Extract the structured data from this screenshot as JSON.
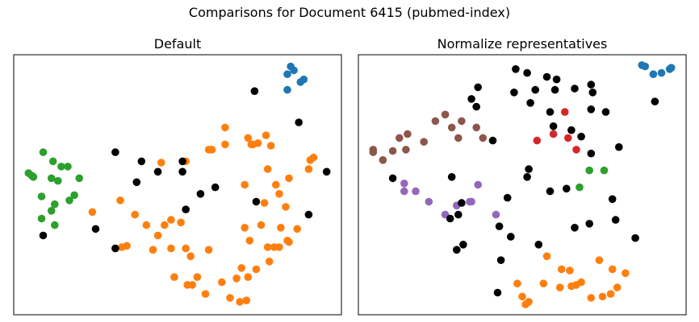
{
  "figure": {
    "title": "Comparisons for Document 6415 (pubmed-index)"
  },
  "colors": {
    "blue": "#1f77b4",
    "orange": "#ff7f0e",
    "green": "#2ca02c",
    "red": "#d62728",
    "purple": "#9467bd",
    "brown": "#8c564b",
    "black": "#000000"
  },
  "chart_data": [
    {
      "type": "scatter",
      "title": "Default",
      "xlabel": "",
      "ylabel": "",
      "axes_ticks": false,
      "xlim": [
        0,
        100
      ],
      "ylim": [
        0,
        100
      ],
      "series": [
        {
          "color": "blue",
          "points": [
            [
              84.5,
              95.5
            ],
            [
              85.5,
              94.0
            ],
            [
              83.5,
              92.5
            ],
            [
              87.5,
              89.5
            ],
            [
              88.5,
              90.5
            ],
            [
              83.5,
              86.5
            ]
          ]
        },
        {
          "color": "green",
          "points": [
            [
              9.0,
              62.5
            ],
            [
              12.0,
              59.0
            ],
            [
              14.5,
              57.0
            ],
            [
              16.5,
              57.0
            ],
            [
              4.5,
              54.5
            ],
            [
              6.0,
              53.0
            ],
            [
              5.5,
              53.5
            ],
            [
              11.5,
              52.5
            ],
            [
              13.5,
              51.5
            ],
            [
              20.0,
              52.5
            ],
            [
              18.5,
              46.0
            ],
            [
              8.5,
              45.5
            ],
            [
              17.0,
              44.0
            ],
            [
              12.5,
              42.5
            ],
            [
              11.5,
              40.0
            ],
            [
              8.5,
              37.0
            ],
            [
              12.5,
              34.5
            ]
          ]
        },
        {
          "color": "orange",
          "points": [
            [
              64.5,
              72.0
            ],
            [
              71.5,
              68.0
            ],
            [
              77.0,
              69.0
            ],
            [
              64.5,
              65.5
            ],
            [
              72.5,
              65.5
            ],
            [
              74.5,
              66.0
            ],
            [
              73.0,
              65.5
            ],
            [
              78.5,
              65.0
            ],
            [
              59.5,
              63.5
            ],
            [
              60.5,
              63.5
            ],
            [
              91.5,
              60.5
            ],
            [
              90.5,
              59.5
            ],
            [
              52.5,
              59.0
            ],
            [
              45.0,
              58.5
            ],
            [
              77.5,
              56.0
            ],
            [
              90.0,
              56.0
            ],
            [
              84.0,
              52.5
            ],
            [
              80.0,
              50.0
            ],
            [
              70.5,
              50.0
            ],
            [
              32.5,
              44.0
            ],
            [
              81.0,
              46.5
            ],
            [
              76.5,
              43.0
            ],
            [
              83.0,
              41.5
            ],
            [
              24.0,
              39.5
            ],
            [
              37.0,
              38.5
            ],
            [
              48.0,
              36.5
            ],
            [
              40.5,
              34.5
            ],
            [
              46.0,
              34.5
            ],
            [
              51.0,
              35.5
            ],
            [
              70.5,
              33.5
            ],
            [
              75.5,
              34.5
            ],
            [
              81.5,
              33.5
            ],
            [
              86.5,
              33.0
            ],
            [
              44.0,
              30.5
            ],
            [
              72.0,
              28.5
            ],
            [
              83.5,
              28.5
            ],
            [
              33.0,
              26.0
            ],
            [
              42.5,
              25.0
            ],
            [
              48.0,
              25.5
            ],
            [
              52.5,
              25.5
            ],
            [
              59.5,
              25.0
            ],
            [
              77.5,
              26.0
            ],
            [
              79.5,
              26.0
            ],
            [
              81.0,
              26.0
            ],
            [
              84.0,
              28.0
            ],
            [
              54.0,
              22.5
            ],
            [
              78.0,
              20.5
            ],
            [
              69.5,
              18.0
            ],
            [
              74.0,
              17.5
            ],
            [
              49.0,
              14.5
            ],
            [
              56.0,
              14.5
            ],
            [
              71.5,
              14.5
            ],
            [
              63.5,
              12.5
            ],
            [
              53.0,
              11.5
            ],
            [
              54.5,
              11.5
            ],
            [
              68.0,
              14.0
            ],
            [
              58.5,
              8.0
            ],
            [
              66.0,
              6.5
            ],
            [
              69.0,
              5.0
            ],
            [
              71.0,
              5.5
            ],
            [
              34.5,
              26.5
            ]
          ]
        },
        {
          "color": "black",
          "points": [
            [
              73.5,
              86.0
            ],
            [
              87.0,
              74.0
            ],
            [
              31.0,
              62.5
            ],
            [
              39.0,
              59.0
            ],
            [
              51.5,
              59.0
            ],
            [
              44.0,
              55.0
            ],
            [
              51.5,
              55.0
            ],
            [
              37.5,
              51.0
            ],
            [
              61.5,
              49.0
            ],
            [
              95.5,
              55.0
            ],
            [
              57.0,
              46.5
            ],
            [
              74.0,
              43.5
            ],
            [
              52.5,
              40.5
            ],
            [
              90.0,
              38.5
            ],
            [
              25.0,
              33.0
            ],
            [
              9.0,
              30.5
            ],
            [
              31.0,
              25.5
            ]
          ]
        }
      ]
    },
    {
      "type": "scatter",
      "title": "Normalize representatives",
      "xlabel": "",
      "ylabel": "",
      "axes_ticks": false,
      "xlim": [
        0,
        100
      ],
      "ylim": [
        0,
        100
      ],
      "series": [
        {
          "color": "blue",
          "points": [
            [
              86.5,
              96.0
            ],
            [
              87.5,
              95.5
            ],
            [
              90.0,
              92.5
            ],
            [
              92.5,
              93.0
            ],
            [
              95.0,
              94.5
            ],
            [
              95.5,
              95.0
            ]
          ]
        },
        {
          "color": "brown",
          "points": [
            [
              26.5,
              77.0
            ],
            [
              23.5,
              74.5
            ],
            [
              31.5,
              74.5
            ],
            [
              36.0,
              72.0
            ],
            [
              28.5,
              72.0
            ],
            [
              15.0,
              69.5
            ],
            [
              12.5,
              68.0
            ],
            [
              30.5,
              68.0
            ],
            [
              38.0,
              68.0
            ],
            [
              20.0,
              66.5
            ],
            [
              4.5,
              63.5
            ],
            [
              4.5,
              62.5
            ],
            [
              10.5,
              63.0
            ],
            [
              14.5,
              63.5
            ],
            [
              7.5,
              59.5
            ]
          ]
        },
        {
          "color": "red",
          "points": [
            [
              63.0,
              78.0
            ],
            [
              59.5,
              69.5
            ],
            [
              64.0,
              68.0
            ],
            [
              54.5,
              67.0
            ],
            [
              66.5,
              63.5
            ]
          ]
        },
        {
          "color": "green",
          "points": [
            [
              70.5,
              55.5
            ],
            [
              75.0,
              55.5
            ],
            [
              67.5,
              49.0
            ]
          ]
        },
        {
          "color": "purple",
          "points": [
            [
              14.0,
              50.5
            ],
            [
              36.5,
              50.0
            ],
            [
              14.0,
              47.5
            ],
            [
              17.5,
              47.5
            ],
            [
              21.5,
              43.5
            ],
            [
              34.0,
              43.5
            ],
            [
              34.5,
              43.5
            ],
            [
              30.0,
              42.0
            ],
            [
              26.5,
              38.5
            ],
            [
              42.0,
              38.5
            ]
          ]
        },
        {
          "color": "orange",
          "points": [
            [
              57.5,
              22.5
            ],
            [
              62.0,
              17.5
            ],
            [
              64.5,
              17.0
            ],
            [
              73.5,
              21.0
            ],
            [
              77.5,
              17.5
            ],
            [
              81.5,
              16.0
            ],
            [
              48.5,
              12.0
            ],
            [
              56.5,
              12.0
            ],
            [
              61.5,
              10.5
            ],
            [
              65.0,
              11.0
            ],
            [
              66.5,
              11.5
            ],
            [
              68.0,
              12.5
            ],
            [
              79.0,
              10.5
            ],
            [
              50.0,
              7.0
            ],
            [
              71.0,
              6.5
            ],
            [
              74.5,
              7.0
            ],
            [
              77.0,
              8.0
            ],
            [
              51.0,
              4.0
            ],
            [
              52.0,
              5.0
            ]
          ]
        },
        {
          "color": "black",
          "points": [
            [
              51.5,
              93.0
            ],
            [
              48.0,
              94.5
            ],
            [
              57.5,
              91.5
            ],
            [
              60.5,
              90.5
            ],
            [
              60.0,
              86.5
            ],
            [
              54.0,
              86.5
            ],
            [
              71.0,
              88.5
            ],
            [
              36.5,
              87.5
            ],
            [
              47.5,
              85.5
            ],
            [
              66.0,
              87.0
            ],
            [
              71.5,
              85.5
            ],
            [
              52.5,
              81.5
            ],
            [
              58.5,
              78.0
            ],
            [
              71.0,
              79.0
            ],
            [
              75.5,
              78.0
            ],
            [
              36.0,
              80.0
            ],
            [
              34.5,
              83.0
            ],
            [
              90.5,
              82.0
            ],
            [
              59.5,
              72.5
            ],
            [
              65.0,
              71.0
            ],
            [
              68.0,
              68.5
            ],
            [
              41.0,
              67.0
            ],
            [
              71.0,
              62.0
            ],
            [
              79.5,
              64.5
            ],
            [
              52.0,
              56.0
            ],
            [
              51.5,
              53.0
            ],
            [
              28.5,
              53.0
            ],
            [
              10.5,
              52.5
            ],
            [
              63.5,
              48.5
            ],
            [
              58.5,
              47.5
            ],
            [
              45.5,
              45.0
            ],
            [
              31.5,
              43.0
            ],
            [
              77.5,
              44.5
            ],
            [
              30.5,
              38.5
            ],
            [
              28.0,
              37.0
            ],
            [
              43.0,
              34.0
            ],
            [
              46.5,
              30.0
            ],
            [
              70.5,
              35.0
            ],
            [
              78.5,
              36.5
            ],
            [
              55.0,
              27.0
            ],
            [
              66.0,
              33.5
            ],
            [
              32.0,
              27.0
            ],
            [
              84.5,
              29.5
            ],
            [
              30.0,
              25.0
            ],
            [
              43.5,
              21.0
            ],
            [
              42.5,
              8.5
            ]
          ]
        }
      ]
    }
  ]
}
